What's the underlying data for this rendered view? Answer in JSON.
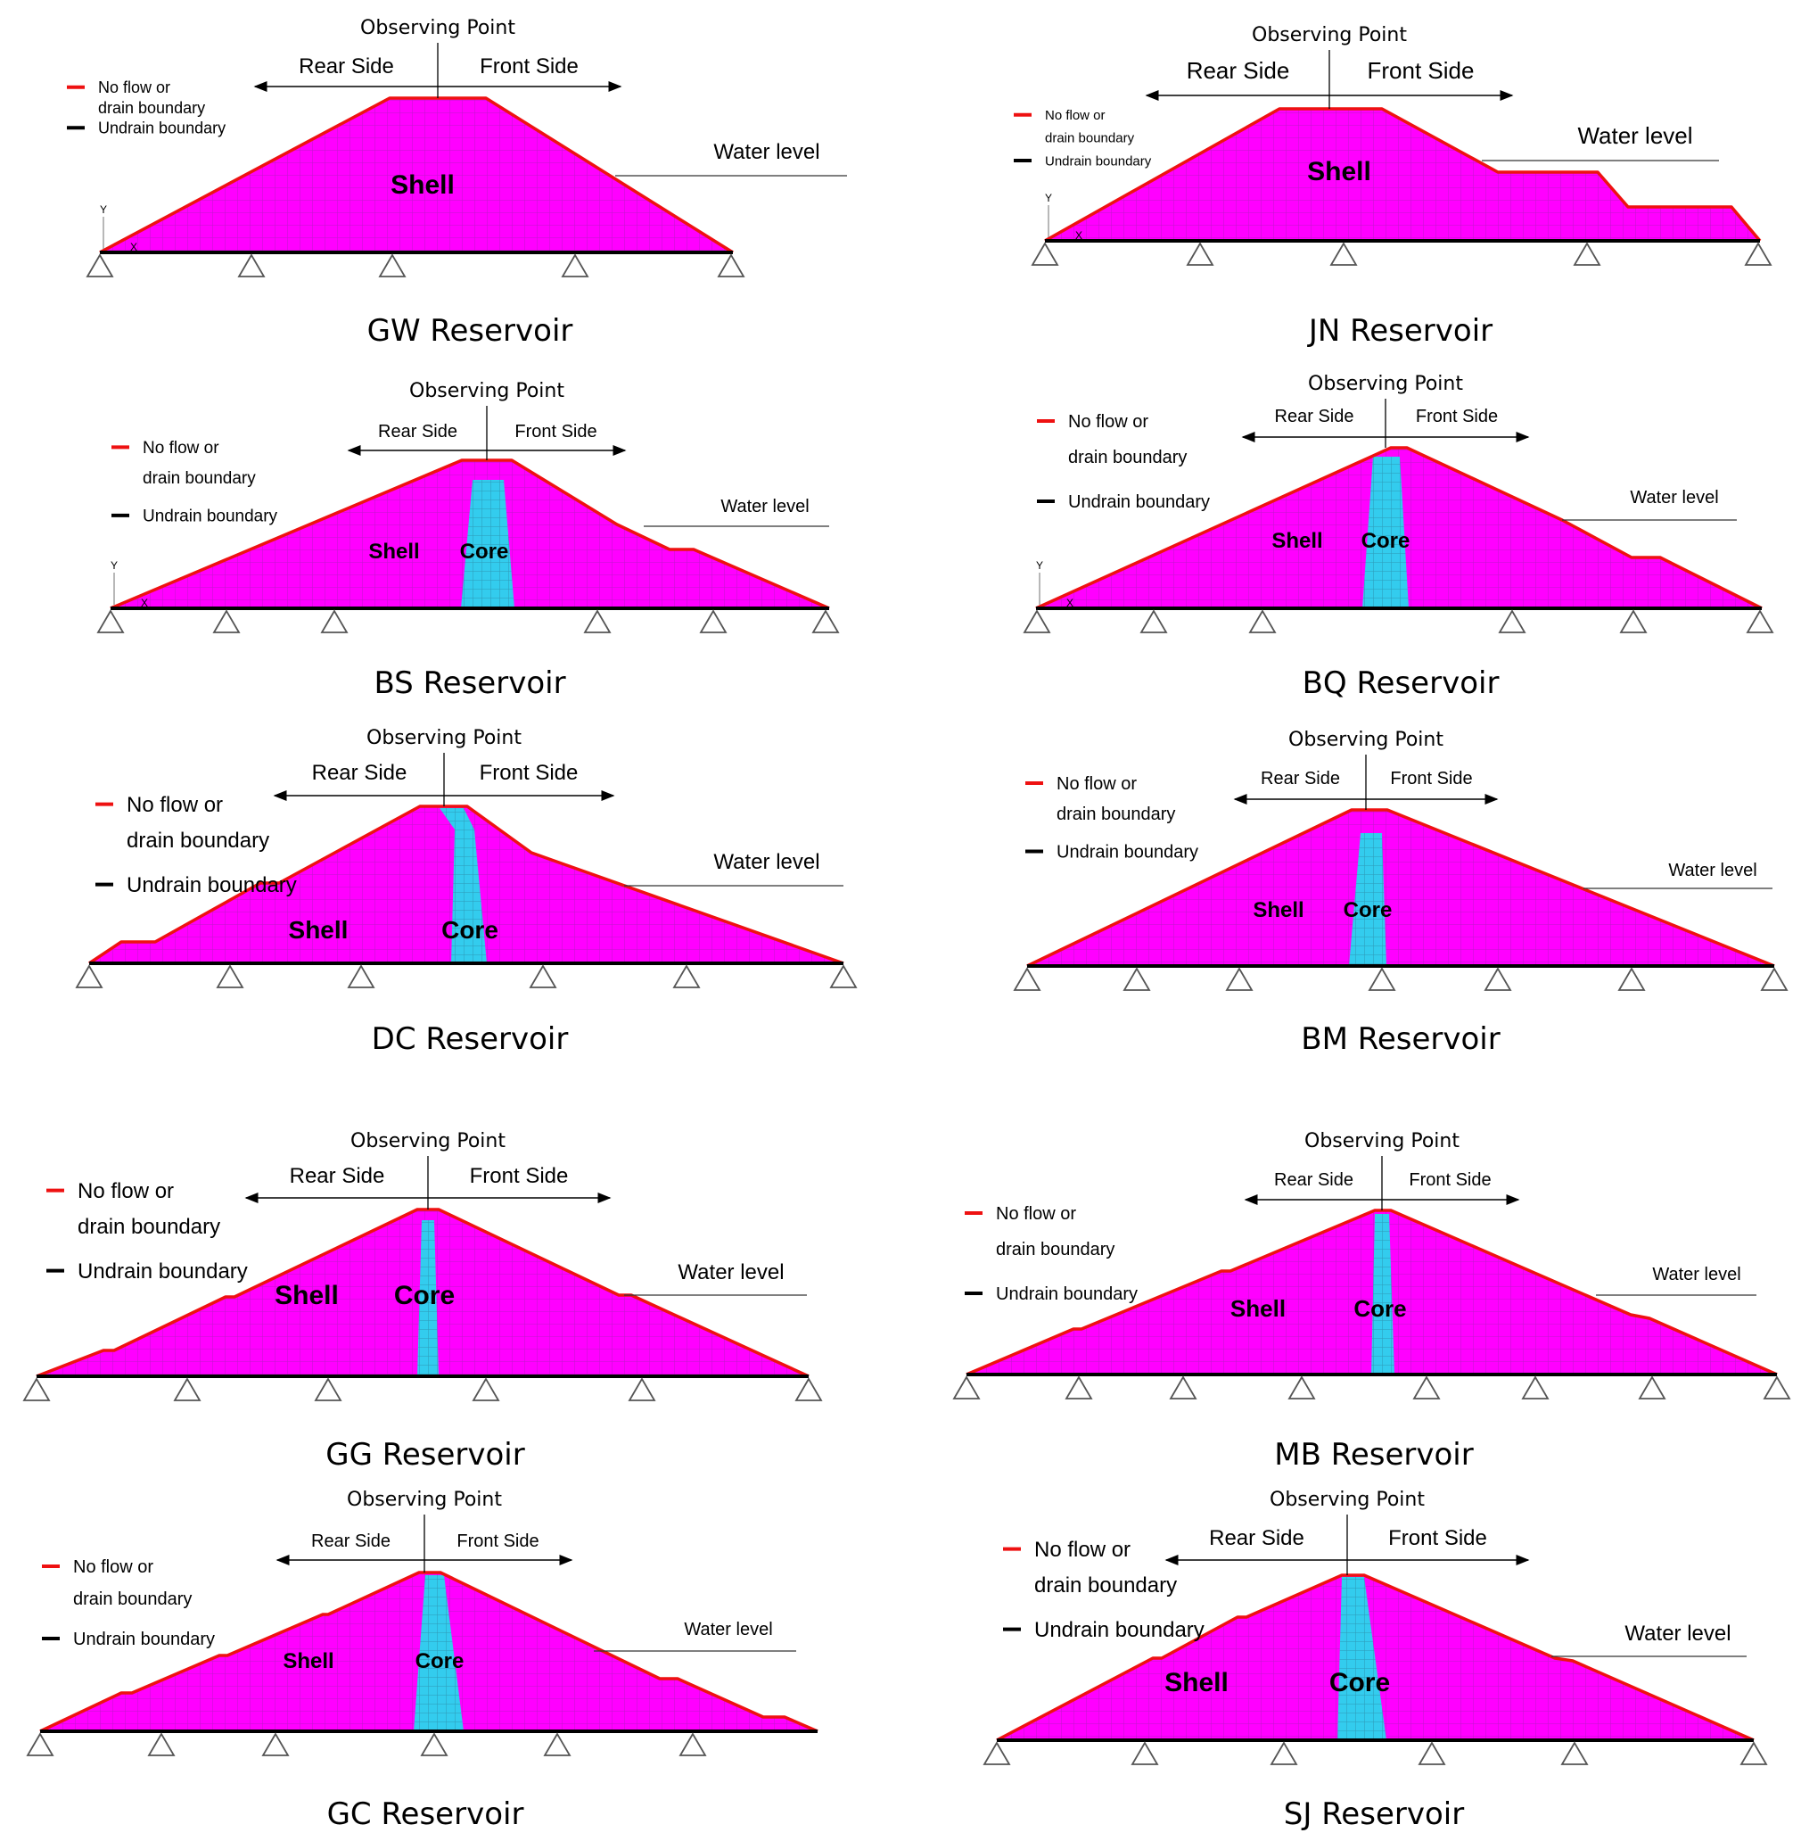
{
  "labels": {
    "observing_point": "Observing Point",
    "rear_side": "Rear Side",
    "front_side": "Front Side",
    "water_level": "Water level",
    "shell": "Shell",
    "core": "Core",
    "no_flow_line1": "No flow or",
    "no_flow_line2": "drain boundary",
    "undrain": "Undrain boundary",
    "axis_y": "Y",
    "axis_x": "X"
  },
  "colors": {
    "shell_fill": "#ff00ff",
    "core_fill": "#33ccee",
    "mesh_line": "#7a2a8c",
    "drain_boundary": "#ee1111",
    "undrain_boundary": "#000000",
    "support": "#555555"
  },
  "panels": [
    {
      "id": "gw",
      "title": "GW Reservoir"
    },
    {
      "id": "jn",
      "title": "JN Reservoir"
    },
    {
      "id": "bs",
      "title": "BS Reservoir"
    },
    {
      "id": "bq",
      "title": "BQ Reservoir"
    },
    {
      "id": "dc",
      "title": "DC Reservoir"
    },
    {
      "id": "bm",
      "title": "BM Reservoir"
    },
    {
      "id": "gg",
      "title": "GG Reservoir"
    },
    {
      "id": "mb",
      "title": "MB Reservoir"
    },
    {
      "id": "gc",
      "title": "GC Reservoir"
    },
    {
      "id": "sj",
      "title": "SJ Reservoir"
    }
  ]
}
